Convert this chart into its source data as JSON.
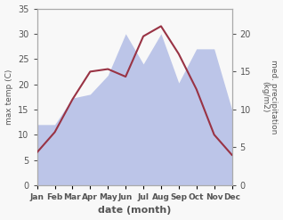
{
  "months": [
    "Jan",
    "Feb",
    "Mar",
    "Apr",
    "May",
    "Jun",
    "Jul",
    "Aug",
    "Sep",
    "Oct",
    "Nov",
    "Dec"
  ],
  "temperature": [
    6.5,
    10.5,
    17.0,
    22.5,
    23.0,
    21.5,
    29.5,
    31.5,
    26.0,
    19.0,
    10.0,
    6.0
  ],
  "precipitation": [
    8.0,
    8.0,
    11.5,
    12.0,
    14.5,
    20.0,
    16.0,
    20.0,
    13.5,
    18.0,
    18.0,
    10.0
  ],
  "temp_color": "#993344",
  "precip_fill_color": "#bcc5e8",
  "temp_ylim": [
    0,
    35
  ],
  "precip_ylim": [
    0,
    23.33
  ],
  "ylabel_left": "max temp (C)",
  "ylabel_right": "med. precipitation\n(kg/m2)",
  "xlabel": "date (month)",
  "yticks_left": [
    0,
    5,
    10,
    15,
    20,
    25,
    30,
    35
  ],
  "yticks_right": [
    0,
    5,
    10,
    15,
    20
  ]
}
